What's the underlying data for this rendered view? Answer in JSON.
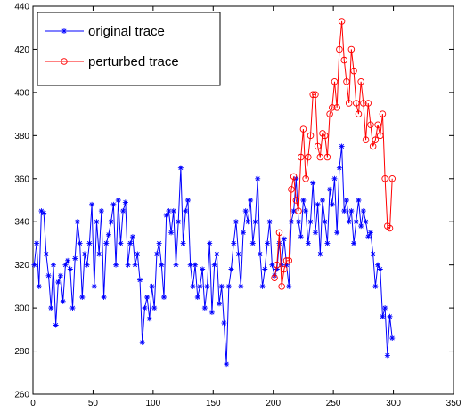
{
  "chart_data": {
    "type": "line",
    "xlim": [
      0,
      350
    ],
    "xticks": [
      0,
      50,
      100,
      150,
      200,
      250,
      300,
      350
    ],
    "ylim": [
      260,
      440
    ],
    "yticks": [
      260,
      280,
      300,
      320,
      340,
      360,
      380,
      400,
      420,
      440
    ],
    "grid": false,
    "legend": "top-left",
    "series": [
      {
        "name": "original trace",
        "color": "#0000ff",
        "marker": "star",
        "x": [
          1,
          3,
          5,
          7,
          9,
          11,
          13,
          15,
          17,
          19,
          21,
          23,
          25,
          27,
          29,
          31,
          33,
          35,
          37,
          39,
          41,
          43,
          45,
          47,
          49,
          51,
          53,
          55,
          57,
          59,
          61,
          63,
          65,
          67,
          69,
          71,
          73,
          75,
          77,
          79,
          81,
          83,
          85,
          87,
          89,
          91,
          93,
          95,
          97,
          99,
          101,
          103,
          105,
          107,
          109,
          111,
          113,
          115,
          117,
          119,
          121,
          123,
          125,
          127,
          129,
          131,
          133,
          135,
          137,
          139,
          141,
          143,
          145,
          147,
          149,
          151,
          153,
          155,
          157,
          159,
          161,
          163,
          165,
          167,
          169,
          171,
          173,
          175,
          177,
          179,
          181,
          183,
          185,
          187,
          189,
          191,
          193,
          195,
          197,
          199,
          201,
          203,
          205,
          207,
          209,
          211,
          213,
          215,
          217,
          219,
          221,
          223,
          225,
          227,
          229,
          231,
          233,
          235,
          237,
          239,
          241,
          243,
          245,
          247,
          249,
          251,
          253,
          255,
          257,
          259,
          261,
          263,
          265,
          267,
          269,
          271,
          273,
          275,
          277,
          279,
          281,
          283,
          285,
          287,
          289,
          291,
          293,
          295,
          297,
          299
        ],
        "values": [
          320,
          330,
          310,
          345,
          344,
          325,
          315,
          300,
          320,
          292,
          312,
          315,
          303,
          320,
          322,
          318,
          300,
          323,
          340,
          330,
          305,
          325,
          320,
          330,
          348,
          310,
          340,
          325,
          345,
          305,
          330,
          334,
          340,
          348,
          320,
          350,
          330,
          345,
          349,
          320,
          330,
          333,
          320,
          325,
          313,
          284,
          300,
          305,
          295,
          310,
          300,
          325,
          330,
          320,
          305,
          343,
          345,
          335,
          345,
          320,
          340,
          365,
          330,
          345,
          350,
          320,
          310,
          320,
          305,
          310,
          318,
          300,
          310,
          330,
          298,
          320,
          325,
          302,
          310,
          293,
          274,
          310,
          318,
          330,
          340,
          325,
          310,
          335,
          345,
          340,
          350,
          330,
          340,
          360,
          325,
          310,
          318,
          330,
          340,
          320,
          315,
          318,
          330,
          320,
          332,
          320,
          310,
          340,
          345,
          360,
          340,
          333,
          350,
          345,
          330,
          340,
          358,
          335,
          348,
          325,
          350,
          340,
          330,
          355,
          348,
          360,
          335,
          365,
          375,
          345,
          350,
          340,
          345,
          330,
          340,
          350,
          338,
          345,
          340,
          333,
          335,
          325,
          310,
          320,
          318,
          296,
          300,
          278,
          296,
          286
        ]
      },
      {
        "name": "perturbed trace",
        "color": "#ff0000",
        "marker": "circle",
        "x": [
          201,
          203,
          205,
          207,
          209,
          211,
          213,
          215,
          217,
          219,
          221,
          223,
          225,
          227,
          229,
          231,
          233,
          235,
          237,
          239,
          241,
          243,
          245,
          247,
          249,
          251,
          253,
          255,
          257,
          259,
          261,
          263,
          265,
          267,
          269,
          271,
          273,
          275,
          277,
          279,
          281,
          283,
          285,
          287,
          289,
          291,
          293,
          295,
          297,
          299
        ],
        "values": [
          314,
          320,
          335,
          310,
          318,
          322,
          322,
          355,
          361,
          350,
          345,
          370,
          383,
          360,
          370,
          380,
          399,
          399,
          375,
          370,
          381,
          380,
          370,
          390,
          393,
          405,
          393,
          420,
          433,
          415,
          405,
          395,
          420,
          410,
          395,
          390,
          405,
          395,
          378,
          395,
          385,
          375,
          378,
          385,
          380,
          390,
          360,
          338,
          337,
          360
        ]
      }
    ]
  }
}
